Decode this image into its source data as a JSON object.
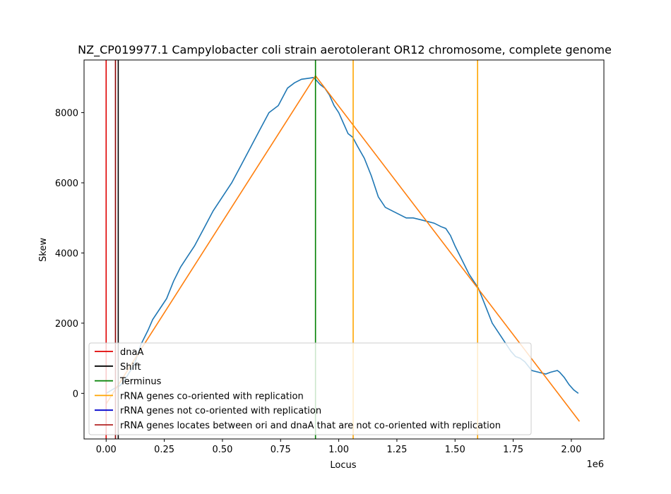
{
  "chart_data": {
    "type": "line",
    "title": "NZ_CP019977.1 Campylobacter coli strain aerotolerant OR12 chromosome, complete genome",
    "xlabel": "Locus",
    "ylabel": "Skew",
    "x_offset_label": "1e6",
    "xlim": [
      -95000,
      2140000
    ],
    "ylim": [
      -1300,
      9500
    ],
    "x_ticks": [
      0,
      250000,
      500000,
      750000,
      1000000,
      1250000,
      1500000,
      1750000,
      2000000
    ],
    "x_tick_labels": [
      "0.00",
      "0.25",
      "0.50",
      "0.75",
      "1.00",
      "1.25",
      "1.50",
      "1.75",
      "2.00"
    ],
    "y_ticks": [
      0,
      2000,
      4000,
      6000,
      8000
    ],
    "y_tick_labels": [
      "0",
      "2000",
      "4000",
      "6000",
      "8000"
    ],
    "grid": false,
    "legend_position": "lower-left",
    "series": [
      {
        "kind": "line",
        "color": "#1f77b4",
        "x": [
          0,
          20000,
          40000,
          60000,
          80000,
          100000,
          120000,
          150000,
          180000,
          200000,
          230000,
          260000,
          290000,
          320000,
          350000,
          380000,
          420000,
          460000,
          500000,
          540000,
          580000,
          620000,
          660000,
          700000,
          740000,
          780000,
          810000,
          840000,
          870000,
          890000,
          900000,
          920000,
          940000,
          960000,
          980000,
          1000000,
          1020000,
          1040000,
          1060000,
          1080000,
          1110000,
          1140000,
          1170000,
          1200000,
          1230000,
          1260000,
          1290000,
          1320000,
          1350000,
          1380000,
          1410000,
          1440000,
          1460000,
          1480000,
          1500000,
          1530000,
          1560000,
          1600000,
          1630000,
          1660000,
          1690000,
          1720000,
          1740000,
          1760000,
          1780000,
          1800000,
          1830000,
          1860000,
          1890000,
          1910000,
          1940000,
          1950000,
          1970000,
          1990000,
          2010000,
          2030000
        ],
        "y": [
          0,
          80,
          160,
          220,
          380,
          600,
          800,
          1400,
          1800,
          2100,
          2400,
          2700,
          3200,
          3600,
          3900,
          4200,
          4700,
          5200,
          5600,
          6000,
          6500,
          7000,
          7500,
          8000,
          8200,
          8700,
          8850,
          8950,
          8980,
          9000,
          8950,
          8800,
          8700,
          8500,
          8200,
          8000,
          7700,
          7400,
          7300,
          7050,
          6700,
          6200,
          5600,
          5300,
          5200,
          5100,
          5000,
          5000,
          4950,
          4900,
          4850,
          4750,
          4700,
          4500,
          4200,
          3800,
          3400,
          3000,
          2500,
          2000,
          1700,
          1400,
          1200,
          1050,
          1000,
          900,
          650,
          600,
          550,
          600,
          650,
          600,
          450,
          250,
          100,
          0
        ]
      },
      {
        "kind": "line",
        "color": "#ff7f0e",
        "x": [
          0,
          900000,
          2035000
        ],
        "y": [
          -300,
          9050,
          -800
        ]
      }
    ],
    "vertical_lines": [
      {
        "x": 0,
        "color": "#e00000"
      },
      {
        "x": 52000,
        "color": "#000000"
      },
      {
        "x": 40000,
        "color": "#8b0000"
      },
      {
        "x": 900000,
        "color": "#008000"
      },
      {
        "x": 1062000,
        "color": "#ffa500"
      },
      {
        "x": 1597000,
        "color": "#ffa500"
      }
    ],
    "legend": [
      {
        "label": "dnaA",
        "color": "#e00000"
      },
      {
        "label": "Shift",
        "color": "#000000"
      },
      {
        "label": "Terminus",
        "color": "#008000"
      },
      {
        "label": "rRNA genes co-oriented with replication",
        "color": "#ffa500"
      },
      {
        "label": "rRNA genes not co-oriented with replication",
        "color": "#0000cc"
      },
      {
        "label": "rRNA genes locates between ori and dnaA that are not co-oriented with replication",
        "color": "#b22222"
      }
    ]
  }
}
